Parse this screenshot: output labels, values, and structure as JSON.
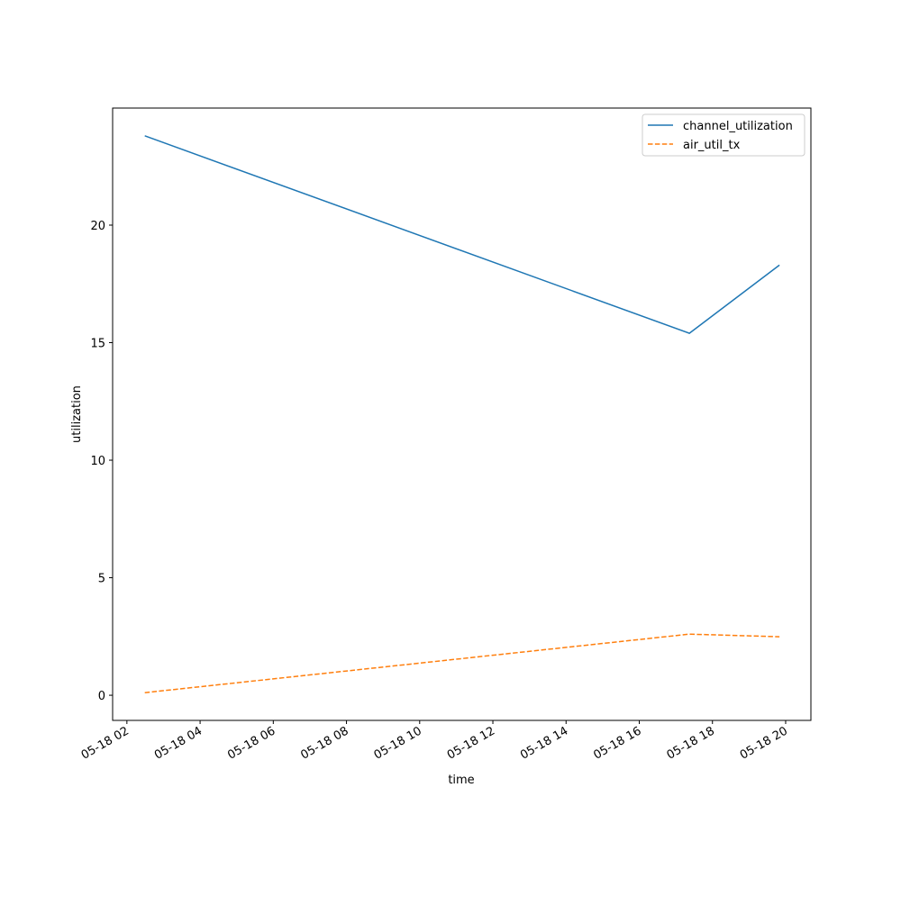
{
  "chart_data": {
    "type": "line",
    "title": "",
    "xlabel": "time",
    "ylabel": "utilization",
    "x_tick_labels": [
      "05-18 02",
      "05-18 04",
      "05-18 06",
      "05-18 08",
      "05-18 10",
      "05-18 12",
      "05-18 14",
      "05-18 16",
      "05-18 18",
      "05-18 20"
    ],
    "x_tick_hours": [
      2,
      4,
      6,
      8,
      10,
      12,
      14,
      16,
      18,
      20
    ],
    "y_ticks": [
      0,
      5,
      10,
      15,
      20
    ],
    "xlim_hours": [
      1.61,
      20.69
    ],
    "ylim": [
      -1.07,
      24.98
    ],
    "x": [
      "05-18 02:29",
      "05-18 17:22",
      "05-18 19:50"
    ],
    "x_hours": [
      2.49,
      17.37,
      19.83
    ],
    "series": [
      {
        "name": "channel_utilization",
        "values": [
          23.8,
          15.4,
          18.3
        ],
        "color": "#1f77b4",
        "dash": "solid"
      },
      {
        "name": "air_util_tx",
        "values": [
          0.11,
          2.6,
          2.49
        ],
        "color": "#ff7f0e",
        "dash": "dashed"
      }
    ],
    "legend": "top-right",
    "grid": false
  }
}
